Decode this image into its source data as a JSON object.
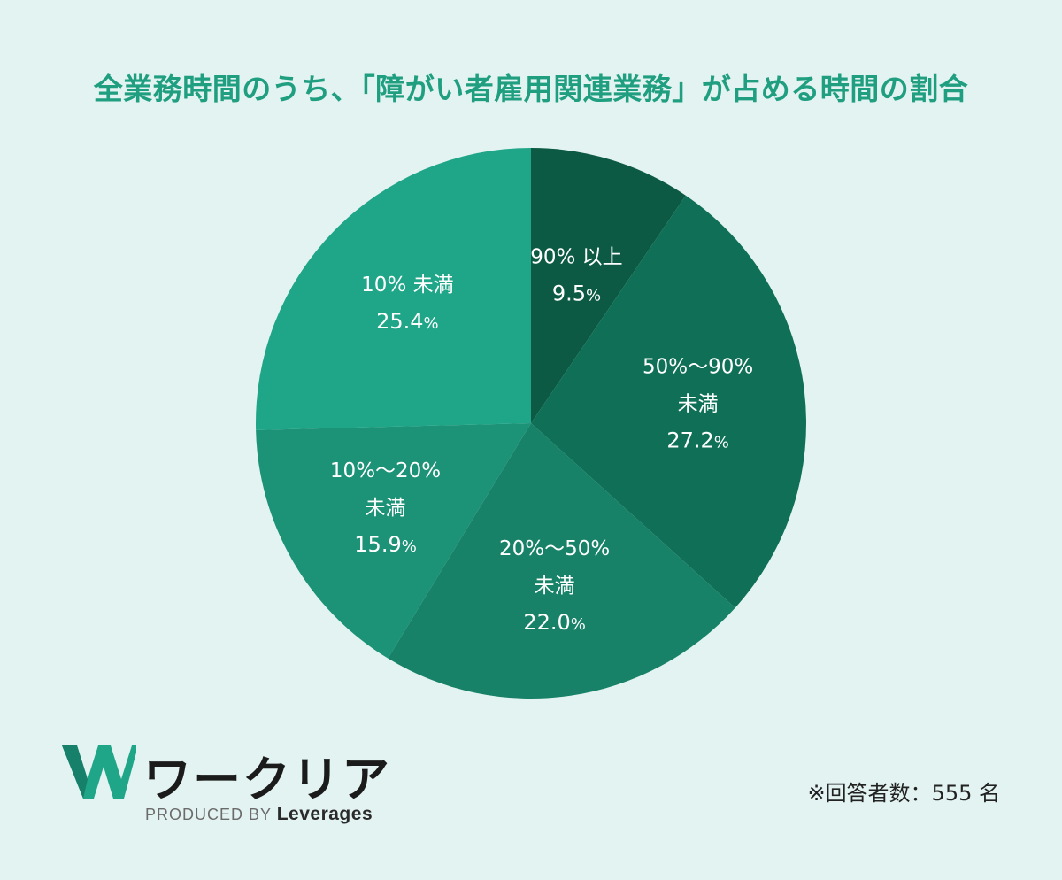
{
  "chart_data": {
    "type": "pie",
    "title": "全業務時間のうち、「障がい者雇用関連業務」が占める時間の割合",
    "unit": "%",
    "slices": [
      {
        "label_lines": [
          "90% 以上"
        ],
        "value": 9.5,
        "value_text": "9.5",
        "color": "#0c5a43"
      },
      {
        "label_lines": [
          "50%～90%",
          "未満"
        ],
        "value": 27.2,
        "value_text": "27.2",
        "color": "#0f7057"
      },
      {
        "label_lines": [
          "20%～50%",
          "未満"
        ],
        "value": 22.0,
        "value_text": "22.0",
        "color": "#188268"
      },
      {
        "label_lines": [
          "10%～20%",
          "未満"
        ],
        "value": 15.9,
        "value_text": "15.9",
        "color": "#1c9277"
      },
      {
        "label_lines": [
          "10% 未満"
        ],
        "value": 25.4,
        "value_text": "25.4",
        "color": "#1fa587"
      }
    ]
  },
  "footer": {
    "logo_name": "ワークリア",
    "produced_by": "PRODUCED BY",
    "brand": "Leverages",
    "respondents_note": "※回答者数：555 名"
  },
  "colors": {
    "background": "#e3f3f1",
    "title": "#1f9e80",
    "logo_accent": "#1fa587"
  }
}
